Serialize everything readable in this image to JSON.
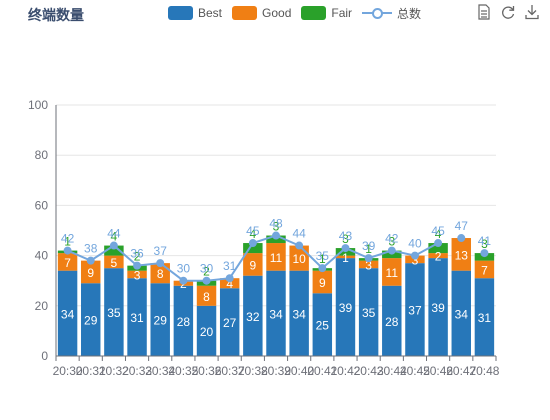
{
  "title": "终端数量",
  "legend": {
    "best": "Best",
    "good": "Good",
    "fair": "Fair",
    "total": "总数"
  },
  "colors": {
    "best": "#2777b9",
    "good": "#f07f14",
    "fair": "#2aa12a",
    "total": "#73a6dd"
  },
  "toolbox": [
    "data-view-icon",
    "restore-icon",
    "save-image-icon"
  ],
  "chart_data": {
    "type": "bar",
    "categories": [
      "20:30",
      "20:31",
      "20:32",
      "20:33",
      "20:34",
      "20:35",
      "20:36",
      "20:37",
      "20:38",
      "20:39",
      "20:40",
      "20:41",
      "20:42",
      "20:43",
      "20:44",
      "20:45",
      "20:46",
      "20:47",
      "20:48"
    ],
    "ylim": [
      0,
      100
    ],
    "yticks": [
      0,
      20,
      40,
      60,
      80,
      100
    ],
    "series": [
      {
        "name": "Best",
        "type": "bar",
        "stack": true,
        "values": [
          34,
          29,
          35,
          31,
          29,
          28,
          20,
          27,
          32,
          34,
          34,
          25,
          39,
          35,
          28,
          37,
          39,
          34,
          31
        ]
      },
      {
        "name": "Good",
        "type": "bar",
        "stack": true,
        "values": [
          7,
          9,
          5,
          3,
          8,
          2,
          8,
          4,
          9,
          11,
          10,
          9,
          1,
          3,
          11,
          3,
          2,
          13,
          7
        ]
      },
      {
        "name": "Fair",
        "type": "bar",
        "stack": true,
        "values": [
          1,
          0,
          4,
          2,
          0,
          0,
          2,
          0,
          4,
          3,
          0,
          1,
          3,
          1,
          3,
          0,
          4,
          0,
          3
        ]
      },
      {
        "name": "总数",
        "type": "line",
        "values": [
          42,
          38,
          44,
          36,
          37,
          30,
          30,
          31,
          45,
          48,
          44,
          35,
          43,
          39,
          42,
          40,
          45,
          47,
          41
        ]
      }
    ]
  }
}
